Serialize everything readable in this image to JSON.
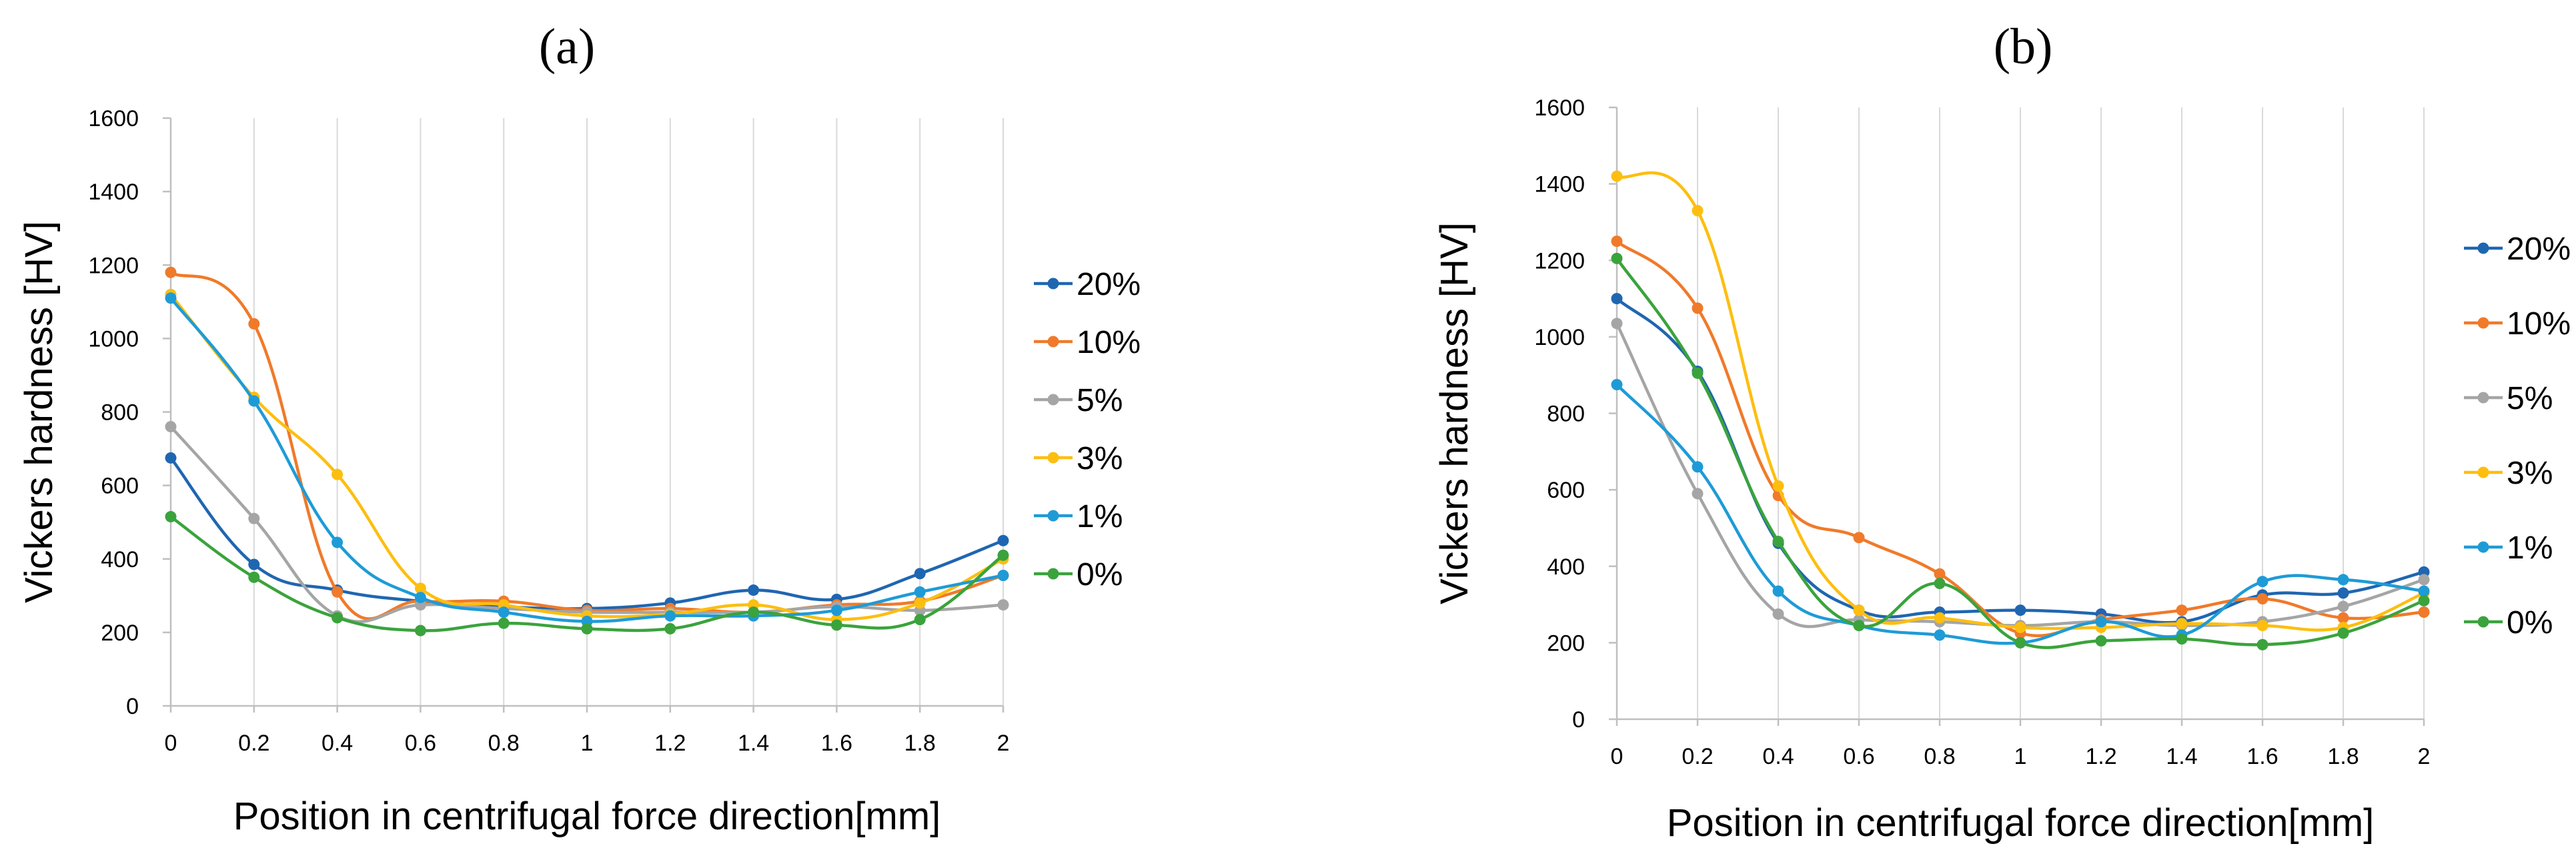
{
  "figure": {
    "panels": [
      "(a)",
      "(b)"
    ]
  },
  "chart_data": [
    {
      "type": "line",
      "panel_label": "(a)",
      "xlabel": "Position in centrifugal force direction[mm]",
      "ylabel": "Vickers hardness [HV]",
      "x": [
        0,
        0.2,
        0.4,
        0.6,
        0.8,
        1,
        1.2,
        1.4,
        1.6,
        1.8,
        2
      ],
      "x_tick_labels": [
        "0",
        "0.2",
        "0.4",
        "0.6",
        "0.8",
        "1",
        "1.2",
        "1.4",
        "1.6",
        "1.8",
        "2"
      ],
      "ylim": [
        0,
        1600
      ],
      "y_ticks": [
        0,
        200,
        400,
        600,
        800,
        1000,
        1200,
        1400,
        1600
      ],
      "grid": "vertical",
      "legend_position": "right",
      "series": [
        {
          "name": "20%",
          "color": "#1f66b1",
          "values": [
            675,
            385,
            315,
            285,
            270,
            265,
            280,
            315,
            290,
            360,
            450
          ]
        },
        {
          "name": "10%",
          "color": "#f07a2a",
          "values": [
            1180,
            1040,
            310,
            285,
            285,
            260,
            265,
            255,
            275,
            285,
            355
          ]
        },
        {
          "name": "5%",
          "color": "#a5a5a5",
          "values": [
            760,
            510,
            245,
            275,
            265,
            255,
            255,
            255,
            270,
            260,
            275
          ]
        },
        {
          "name": "3%",
          "color": "#fdbe10",
          "values": [
            1120,
            840,
            630,
            320,
            275,
            245,
            250,
            275,
            235,
            280,
            400
          ]
        },
        {
          "name": "1%",
          "color": "#1e9bd7",
          "values": [
            1110,
            830,
            445,
            295,
            255,
            230,
            245,
            245,
            260,
            310,
            355
          ]
        },
        {
          "name": "0%",
          "color": "#3aa33c",
          "values": [
            515,
            350,
            240,
            205,
            225,
            210,
            210,
            255,
            220,
            235,
            410
          ]
        }
      ]
    },
    {
      "type": "line",
      "panel_label": "(b)",
      "xlabel": "Position in centrifugal force direction[mm]",
      "ylabel": "Vickers hardness [HV]",
      "x": [
        0,
        0.2,
        0.4,
        0.6,
        0.8,
        1,
        1.2,
        1.4,
        1.6,
        1.8,
        2
      ],
      "x_tick_labels": [
        "0",
        "0.2",
        "0.4",
        "0.6",
        "0.8",
        "1",
        "1.2",
        "1.4",
        "1.6",
        "1.8",
        "2"
      ],
      "ylim": [
        0,
        1600
      ],
      "y_ticks": [
        0,
        200,
        400,
        600,
        800,
        1000,
        1200,
        1400,
        1600
      ],
      "grid": "vertical",
      "legend_position": "right",
      "series": [
        {
          "name": "20%",
          "color": "#1f66b1",
          "values": [
            1100,
            910,
            460,
            285,
            280,
            285,
            275,
            255,
            325,
            330,
            385
          ]
        },
        {
          "name": "10%",
          "color": "#f07a2a",
          "values": [
            1250,
            1075,
            585,
            475,
            380,
            225,
            260,
            285,
            315,
            265,
            280
          ]
        },
        {
          "name": "5%",
          "color": "#a5a5a5",
          "values": [
            1035,
            590,
            275,
            260,
            255,
            245,
            255,
            245,
            255,
            295,
            365
          ]
        },
        {
          "name": "3%",
          "color": "#fdbe10",
          "values": [
            1420,
            1330,
            610,
            285,
            265,
            240,
            240,
            250,
            245,
            240,
            330
          ]
        },
        {
          "name": "1%",
          "color": "#1e9bd7",
          "values": [
            875,
            660,
            335,
            245,
            220,
            200,
            255,
            220,
            360,
            365,
            335
          ]
        },
        {
          "name": "0%",
          "color": "#3aa33c",
          "values": [
            1205,
            905,
            465,
            245,
            355,
            200,
            205,
            210,
            195,
            225,
            310
          ]
        }
      ]
    }
  ]
}
